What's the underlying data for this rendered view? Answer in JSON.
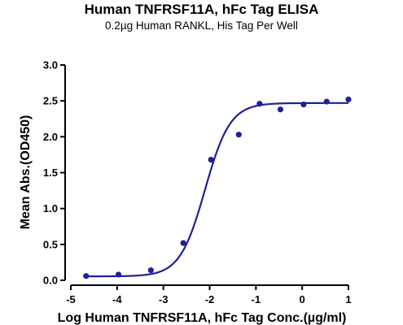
{
  "chart_data": {
    "type": "scatter",
    "title": "Human TNFRSF11A, hFc Tag ELISA",
    "subtitle": "0.2µg Human RANKL, His Tag Per Well",
    "xlabel": "Log Human TNFRSF11A, hFc Tag Conc.(µg/ml)",
    "ylabel": "Mean Abs.(OD450)",
    "xlim": [
      -5,
      1
    ],
    "ylim": [
      0,
      3
    ],
    "xticks": [
      -5,
      -4,
      -3,
      -2,
      -1,
      0,
      1
    ],
    "yticks": [
      0.0,
      0.5,
      1.0,
      1.5,
      2.0,
      2.5,
      3.0
    ],
    "xtick_labels": [
      "-5",
      "-4",
      "-3",
      "-2",
      "-1",
      "0",
      "1"
    ],
    "ytick_labels": [
      "0.0",
      "0.5",
      "1.0",
      "1.5",
      "2.0",
      "2.5",
      "3.0"
    ],
    "grid": false,
    "series": [
      {
        "color": "#1f1f9e",
        "points": [
          {
            "x": -4.67,
            "y": 0.06
          },
          {
            "x": -3.97,
            "y": 0.08
          },
          {
            "x": -3.27,
            "y": 0.14
          },
          {
            "x": -2.57,
            "y": 0.52
          },
          {
            "x": -1.97,
            "y": 1.68
          },
          {
            "x": -1.37,
            "y": 2.03
          },
          {
            "x": -0.92,
            "y": 2.46
          },
          {
            "x": -0.47,
            "y": 2.38
          },
          {
            "x": 0.03,
            "y": 2.45
          },
          {
            "x": 0.53,
            "y": 2.49
          },
          {
            "x": 1.0,
            "y": 2.52
          }
        ],
        "fit": {
          "model": "4PL",
          "bottom": 0.055,
          "top": 2.47,
          "logEC50": -2.1,
          "hill": 1.6
        }
      }
    ]
  }
}
